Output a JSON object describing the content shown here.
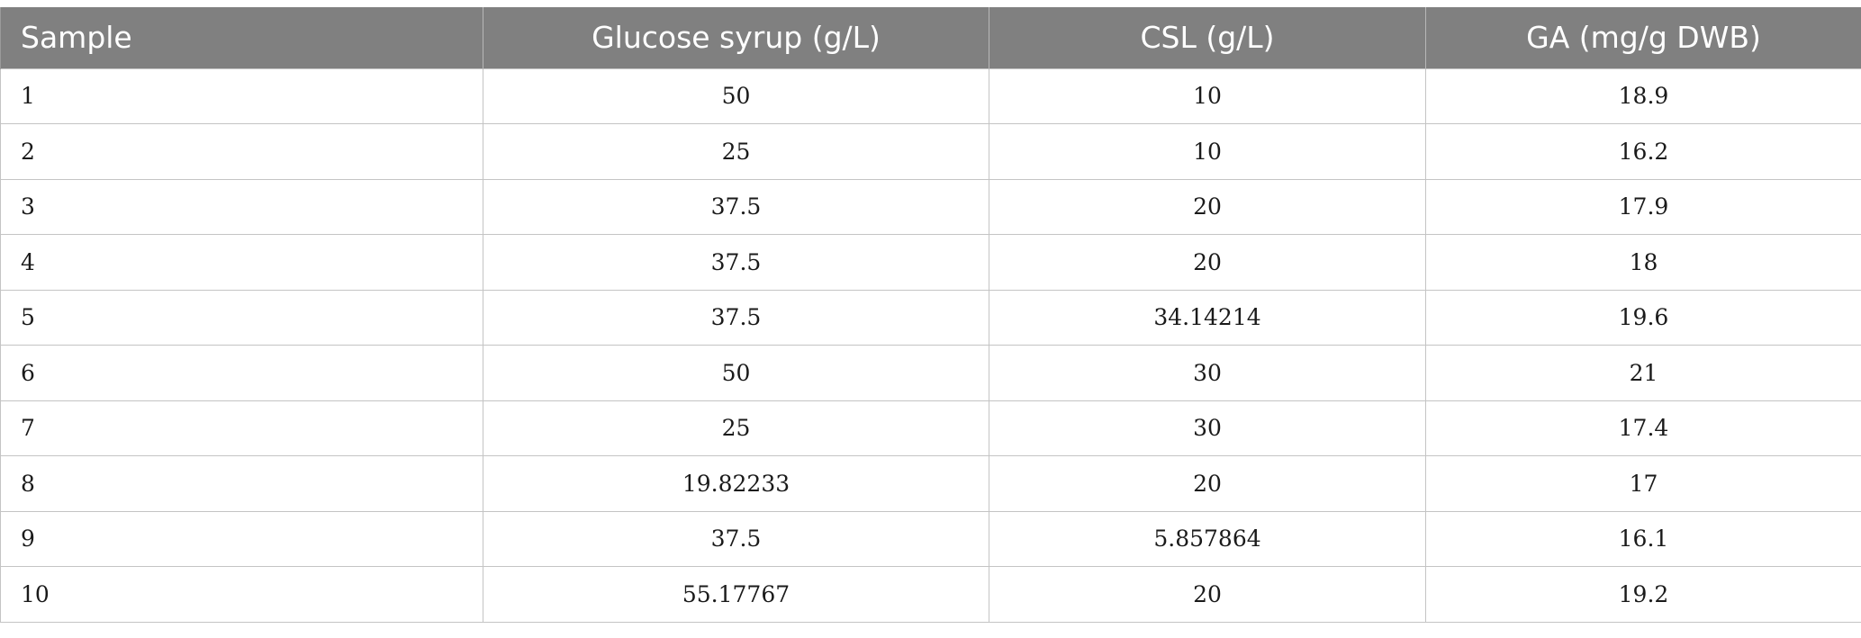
{
  "table": {
    "headers": [
      "Sample",
      "Glucose syrup (g/L)",
      "CSL (g/L)",
      "GA (mg/g DWB)"
    ],
    "rows": [
      [
        "1",
        "50",
        "10",
        "18.9"
      ],
      [
        "2",
        "25",
        "10",
        "16.2"
      ],
      [
        "3",
        "37.5",
        "20",
        "17.9"
      ],
      [
        "4",
        "37.5",
        "20",
        "18"
      ],
      [
        "5",
        "37.5",
        "34.14214",
        "19.6"
      ],
      [
        "6",
        "50",
        "30",
        "21"
      ],
      [
        "7",
        "25",
        "30",
        "17.4"
      ],
      [
        "8",
        "19.82233",
        "20",
        "17"
      ],
      [
        "9",
        "37.5",
        "5.857864",
        "16.1"
      ],
      [
        "10",
        "55.17767",
        "20",
        "19.2"
      ]
    ]
  }
}
